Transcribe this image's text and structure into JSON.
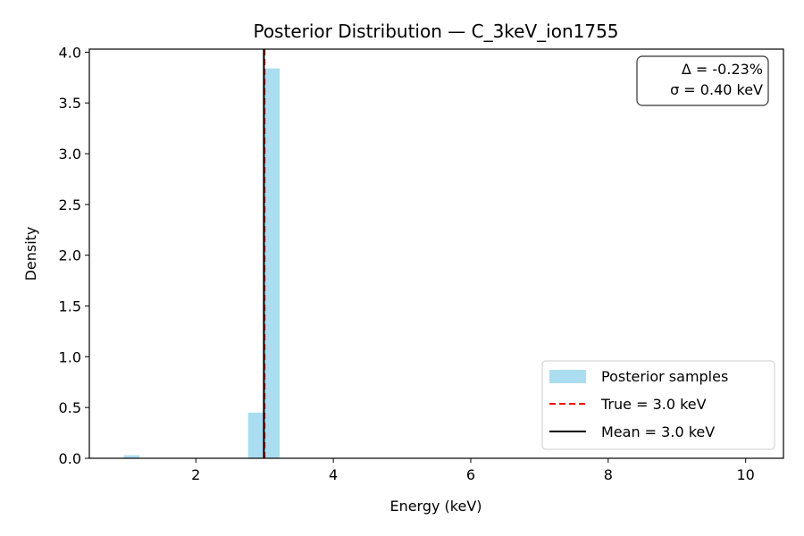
{
  "chart_data": {
    "type": "bar",
    "title": "Posterior Distribution — C_3keV_ion1755",
    "xlabel": "Energy (keV)",
    "ylabel": "Density",
    "xlim": [
      0.45,
      10.55
    ],
    "ylim": [
      0,
      4.03
    ],
    "xticks": [
      2,
      4,
      6,
      8,
      10
    ],
    "yticks": [
      0.0,
      0.5,
      1.0,
      1.5,
      2.0,
      2.5,
      3.0,
      3.5,
      4.0
    ],
    "xtick_labels": [
      "2",
      "4",
      "6",
      "8",
      "10"
    ],
    "ytick_labels": [
      "0.0",
      "0.5",
      "1.0",
      "1.5",
      "2.0",
      "2.5",
      "3.0",
      "3.5",
      "4.0"
    ],
    "grid": false,
    "legend_position": "bottom-right",
    "histogram": {
      "name": "Posterior samples",
      "color": "#87ceeb",
      "bins": [
        {
          "x0": 0.95,
          "x1": 1.18,
          "density": 0.03
        },
        {
          "x0": 2.76,
          "x1": 2.99,
          "density": 0.45
        },
        {
          "x0": 3.0,
          "x1": 3.22,
          "density": 3.84
        }
      ]
    },
    "lines": [
      {
        "name": "True = 3.0 keV",
        "x": 3.0,
        "color": "#ff0000",
        "style": "dashed"
      },
      {
        "name": "Mean = 3.0 keV",
        "x": 2.99,
        "color": "#000000",
        "style": "solid"
      }
    ],
    "stats": {
      "delta": "Δ = -0.23%",
      "sigma": "σ = 0.40 keV",
      "position": "top-right"
    }
  }
}
